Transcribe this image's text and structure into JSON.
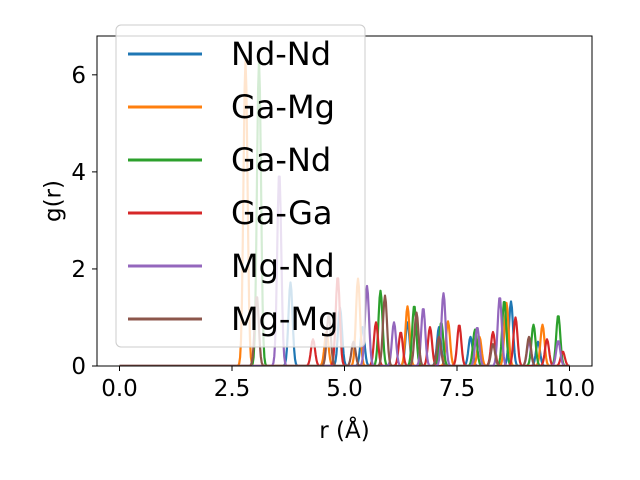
{
  "chart_data": {
    "type": "line",
    "title": "",
    "xlabel": "r (Å)",
    "ylabel": "g(r)",
    "xlim": [
      -0.5,
      10.5
    ],
    "ylim": [
      0,
      6.8
    ],
    "xticks": [
      0.0,
      2.5,
      5.0,
      7.5,
      10.0
    ],
    "xtick_labels": [
      "0.0",
      "2.5",
      "5.0",
      "7.5",
      "10.0"
    ],
    "yticks": [
      0,
      2,
      4,
      6
    ],
    "ytick_labels": [
      "0",
      "2",
      "4",
      "6"
    ],
    "grid": false,
    "legend_position": "upper left",
    "series": [
      {
        "name": "Nd-Nd",
        "color": "#1f77b4",
        "peaks": [
          [
            3.8,
            1.72
          ],
          [
            4.9,
            1.2
          ],
          [
            5.4,
            0.8
          ],
          [
            6.4,
            0.9
          ],
          [
            7.1,
            0.8
          ],
          [
            7.8,
            0.6
          ],
          [
            8.7,
            1.33
          ],
          [
            9.3,
            0.5
          ]
        ]
      },
      {
        "name": "Ga-Mg",
        "color": "#ff7f0e",
        "peaks": [
          [
            2.8,
            6.3
          ],
          [
            4.6,
            0.7
          ],
          [
            5.3,
            1.8
          ],
          [
            6.4,
            1.23
          ],
          [
            7.3,
            0.92
          ],
          [
            8.0,
            0.6
          ],
          [
            8.6,
            1.3
          ],
          [
            9.4,
            0.85
          ]
        ]
      },
      {
        "name": "Ga-Nd",
        "color": "#2ca02c",
        "peaks": [
          [
            3.1,
            6.3
          ],
          [
            5.8,
            1.55
          ],
          [
            6.55,
            1.25
          ],
          [
            7.15,
            0.9
          ],
          [
            7.9,
            0.75
          ],
          [
            8.55,
            1.35
          ],
          [
            9.2,
            0.85
          ],
          [
            9.75,
            1.05
          ]
        ]
      },
      {
        "name": "Ga-Ga",
        "color": "#d62728",
        "peaks": [
          [
            4.3,
            0.55
          ],
          [
            4.85,
            1.85
          ],
          [
            5.7,
            0.9
          ],
          [
            6.25,
            0.7
          ],
          [
            6.9,
            0.8
          ],
          [
            7.55,
            0.85
          ],
          [
            8.3,
            0.7
          ],
          [
            8.8,
            1.0
          ],
          [
            9.5,
            0.55
          ],
          [
            9.85,
            0.3
          ]
        ]
      },
      {
        "name": "Mg-Nd",
        "color": "#9467bd",
        "peaks": [
          [
            3.55,
            4.0
          ],
          [
            5.5,
            1.65
          ],
          [
            6.1,
            0.9
          ],
          [
            6.75,
            1.2
          ],
          [
            7.2,
            1.5
          ],
          [
            7.95,
            0.8
          ],
          [
            8.45,
            1.43
          ],
          [
            9.1,
            0.5
          ],
          [
            9.75,
            0.52
          ]
        ]
      },
      {
        "name": "Mg-Mg",
        "color": "#8c564b",
        "peaks": [
          [
            3.05,
            1.45
          ],
          [
            4.65,
            1.05
          ],
          [
            5.2,
            0.5
          ],
          [
            5.9,
            1.45
          ],
          [
            6.6,
            1.1
          ],
          [
            7.1,
            0.6
          ],
          [
            8.3,
            0.45
          ],
          [
            9.1,
            0.6
          ]
        ]
      }
    ]
  }
}
